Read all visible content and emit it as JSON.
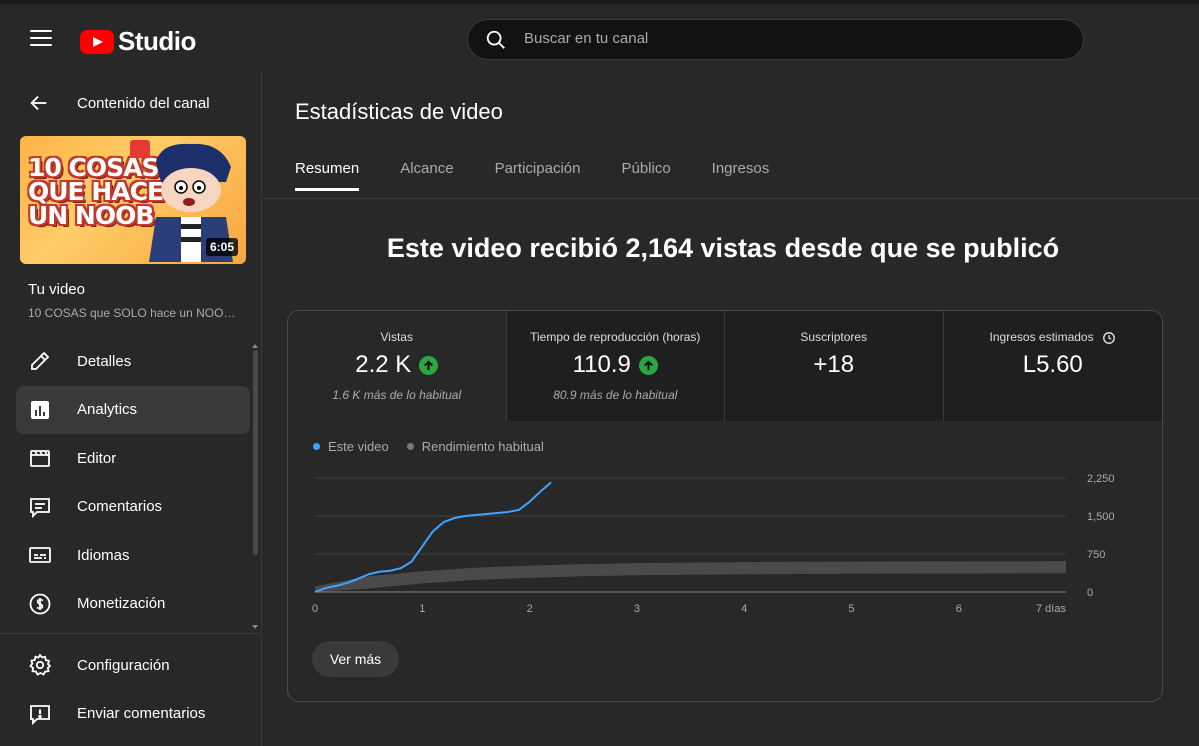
{
  "header": {
    "logo_text": "Studio",
    "search_placeholder": "Buscar en tu canal"
  },
  "sidebar": {
    "back_label": "Contenido del canal",
    "thumbnail": {
      "text_line1": "10 COSAS",
      "text_line2": "QUE HACE",
      "text_line3": "UN NOOB",
      "duration": "6:05"
    },
    "your_video": "Tu video",
    "video_title": "10 COSAS que SOLO hace un NOOB ...",
    "items": [
      {
        "label": "Detalles",
        "icon": "pencil-icon"
      },
      {
        "label": "Analytics",
        "icon": "analytics-icon",
        "active": true
      },
      {
        "label": "Editor",
        "icon": "editor-icon"
      },
      {
        "label": "Comentarios",
        "icon": "comments-icon"
      },
      {
        "label": "Idiomas",
        "icon": "subtitles-icon"
      },
      {
        "label": "Monetización",
        "icon": "dollar-icon"
      }
    ],
    "bottom_items": [
      {
        "label": "Configuración",
        "icon": "gear-icon"
      },
      {
        "label": "Enviar comentarios",
        "icon": "feedback-icon"
      }
    ]
  },
  "main": {
    "page_title": "Estadísticas de video",
    "tabs": [
      {
        "label": "Resumen",
        "active": true
      },
      {
        "label": "Alcance"
      },
      {
        "label": "Participación"
      },
      {
        "label": "Público"
      },
      {
        "label": "Ingresos"
      }
    ],
    "headline": "Este video recibió 2,164 vistas desde que se publicó",
    "metrics": [
      {
        "label": "Vistas",
        "value": "2.2 K",
        "trend": "up",
        "sub": "1.6 K más de lo habitual"
      },
      {
        "label": "Tiempo de reproducción (horas)",
        "value": "110.9",
        "trend": "up",
        "sub": "80.9 más de lo habitual"
      },
      {
        "label": "Suscriptores",
        "value": "+18"
      },
      {
        "label": "Ingresos estimados",
        "value": "L5.60"
      }
    ],
    "more_button": "Ver más"
  },
  "chart_data": {
    "type": "line",
    "series": [
      {
        "name": "Este video",
        "color": "#3ea6ff",
        "x": [
          0,
          0.1,
          0.2,
          0.3,
          0.4,
          0.5,
          0.6,
          0.7,
          0.8,
          0.9,
          1.0,
          1.1,
          1.2,
          1.3,
          1.4,
          1.5,
          1.6,
          1.7,
          1.8,
          1.9,
          2.0,
          2.1,
          2.2
        ],
        "values": [
          0,
          80,
          120,
          180,
          260,
          350,
          400,
          420,
          470,
          600,
          900,
          1200,
          1380,
          1460,
          1500,
          1520,
          1540,
          1560,
          1580,
          1620,
          1780,
          1980,
          2164
        ]
      },
      {
        "name": "Rendimiento habitual",
        "color": "#555555",
        "x": [
          0,
          0.5,
          1,
          1.5,
          2,
          2.5,
          3,
          4,
          5,
          6,
          7
        ],
        "values": [
          50,
          250,
          350,
          420,
          460,
          490,
          510,
          530,
          540,
          545,
          550
        ]
      }
    ],
    "x_ticks": [
      "0",
      "1",
      "2",
      "3",
      "4",
      "5",
      "6",
      "7 días"
    ],
    "y_ticks": [
      "0",
      "750",
      "1,500",
      "2,250"
    ],
    "xlim": [
      0,
      7
    ],
    "ylim": [
      0,
      2250
    ],
    "legend_position": "top-left"
  }
}
